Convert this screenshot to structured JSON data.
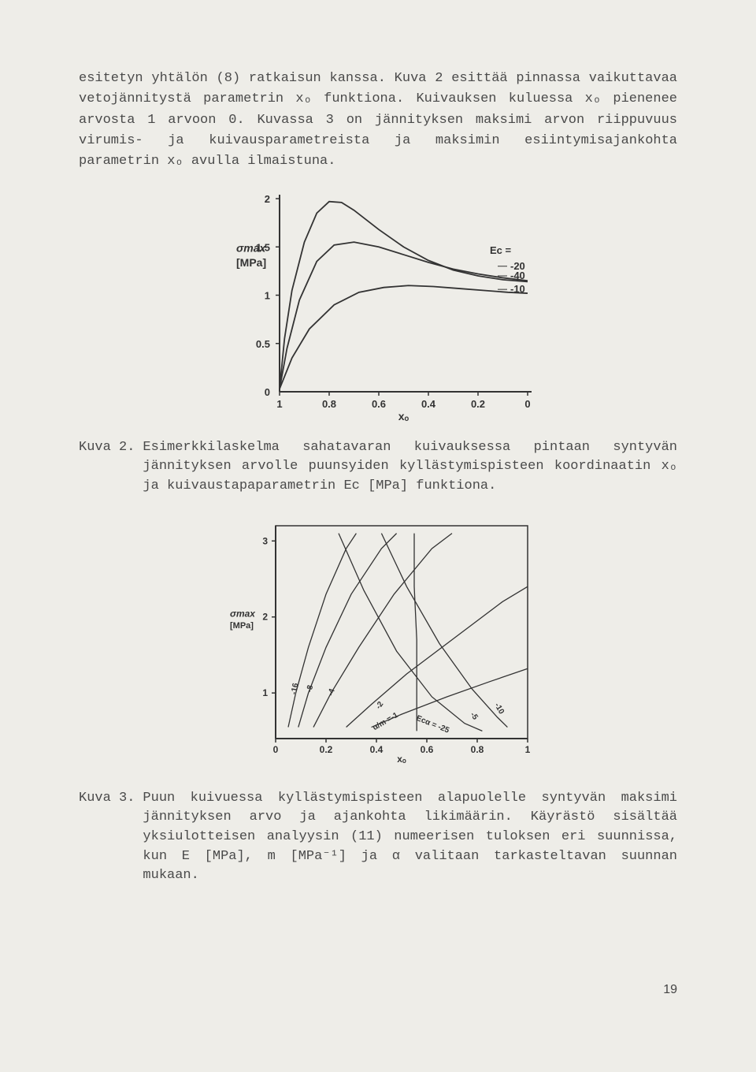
{
  "paragraph1": "esitetyn yhtälön (8) ratkaisun kanssa. Kuva 2 esittää pinnassa vaikuttavaa vetojännitystä parametrin xₒ funktiona. Kuivauksen kuluessa xₒ pienenee arvosta 1 arvoon 0. Kuvassa 3 on jännityksen maksimi arvon riippuvuus virumis- ja kuivausparametreista ja maksimin esiintymisajankohta parametrin xₒ avulla ilmaistuna.",
  "chart1": {
    "type": "line",
    "xlabel": "xₒ",
    "ylabel_top": "σmax",
    "ylabel_bottom": "[MPa]",
    "xlim": [
      1,
      0
    ],
    "ylim": [
      0,
      2
    ],
    "xticks": [
      1,
      0.8,
      0.6,
      0.4,
      0.2,
      0
    ],
    "yticks": [
      0,
      0.5,
      1,
      1.5,
      2
    ],
    "legend_label": "Ec =",
    "legend_values": [
      "-20",
      "-40",
      "-10"
    ],
    "line_color": "#333333",
    "line_width": 1.8,
    "axis_color": "#333333",
    "axis_width": 2,
    "font_size_ticks": 13,
    "font_size_label": 14,
    "series": {
      "minus20": [
        [
          1,
          0.03
        ],
        [
          0.98,
          0.55
        ],
        [
          0.95,
          1.05
        ],
        [
          0.9,
          1.55
        ],
        [
          0.85,
          1.85
        ],
        [
          0.8,
          1.97
        ],
        [
          0.75,
          1.96
        ],
        [
          0.7,
          1.88
        ],
        [
          0.6,
          1.68
        ],
        [
          0.5,
          1.5
        ],
        [
          0.4,
          1.36
        ],
        [
          0.3,
          1.26
        ],
        [
          0.2,
          1.2
        ],
        [
          0.1,
          1.16
        ],
        [
          0,
          1.14
        ]
      ],
      "minus40": [
        [
          1,
          0.03
        ],
        [
          0.97,
          0.45
        ],
        [
          0.92,
          0.95
        ],
        [
          0.85,
          1.35
        ],
        [
          0.78,
          1.52
        ],
        [
          0.7,
          1.55
        ],
        [
          0.6,
          1.5
        ],
        [
          0.5,
          1.42
        ],
        [
          0.4,
          1.34
        ],
        [
          0.3,
          1.27
        ],
        [
          0.2,
          1.22
        ],
        [
          0.1,
          1.18
        ],
        [
          0,
          1.15
        ]
      ],
      "minus10": [
        [
          1,
          0.03
        ],
        [
          0.95,
          0.35
        ],
        [
          0.88,
          0.65
        ],
        [
          0.78,
          0.9
        ],
        [
          0.68,
          1.03
        ],
        [
          0.58,
          1.08
        ],
        [
          0.48,
          1.1
        ],
        [
          0.38,
          1.09
        ],
        [
          0.28,
          1.07
        ],
        [
          0.18,
          1.05
        ],
        [
          0.08,
          1.03
        ],
        [
          0,
          1.02
        ]
      ]
    }
  },
  "caption1_label": "Kuva 2.",
  "caption1_body": "Esimerkkilaskelma sahatavaran kuivauksessa pintaan syntyvän jännityksen arvolle puunsyiden kyllästymispisteen koordinaatin xₒ ja kuivaustapaparametrin Ec [MPa] funktiona.",
  "chart2": {
    "type": "line-network",
    "xlabel": "xₒ",
    "ylabel_top": "σmax",
    "ylabel_bottom": "[MPa]",
    "xlim": [
      0,
      1
    ],
    "ylim": [
      0.4,
      3.2
    ],
    "xticks": [
      0,
      0.2,
      0.4,
      0.6,
      0.8,
      1
    ],
    "yticks": [
      1,
      2,
      3
    ],
    "line_color": "#333333",
    "line_width": 1.3,
    "axis_color": "#333333",
    "axis_width": 2,
    "border_color": "#333333",
    "font_size_ticks": 12,
    "font_size_label": 12,
    "curves": {
      "m16": [
        [
          0.05,
          0.55
        ],
        [
          0.08,
          1.0
        ],
        [
          0.13,
          1.6
        ],
        [
          0.2,
          2.3
        ],
        [
          0.28,
          2.9
        ],
        [
          0.32,
          3.1
        ]
      ],
      "m8": [
        [
          0.09,
          0.55
        ],
        [
          0.13,
          1.0
        ],
        [
          0.2,
          1.6
        ],
        [
          0.3,
          2.3
        ],
        [
          0.42,
          2.9
        ],
        [
          0.48,
          3.1
        ]
      ],
      "m4": [
        [
          0.15,
          0.55
        ],
        [
          0.22,
          1.0
        ],
        [
          0.33,
          1.6
        ],
        [
          0.47,
          2.3
        ],
        [
          0.62,
          2.9
        ],
        [
          0.7,
          3.1
        ]
      ],
      "m2": [
        [
          0.28,
          0.55
        ],
        [
          0.38,
          0.85
        ],
        [
          0.52,
          1.25
        ],
        [
          0.7,
          1.7
        ],
        [
          0.9,
          2.2
        ],
        [
          1.0,
          2.4
        ]
      ],
      "m1": [
        [
          0.38,
          0.55
        ],
        [
          0.5,
          0.72
        ],
        [
          0.68,
          0.95
        ],
        [
          0.85,
          1.15
        ],
        [
          1.0,
          1.32
        ]
      ],
      "e5": [
        [
          0.25,
          3.1
        ],
        [
          0.35,
          2.35
        ],
        [
          0.48,
          1.55
        ],
        [
          0.62,
          0.95
        ],
        [
          0.75,
          0.6
        ],
        [
          0.82,
          0.5
        ]
      ],
      "e10": [
        [
          0.42,
          3.1
        ],
        [
          0.52,
          2.4
        ],
        [
          0.65,
          1.65
        ],
        [
          0.78,
          1.05
        ],
        [
          0.88,
          0.68
        ],
        [
          0.92,
          0.55
        ]
      ],
      "e25": [
        [
          0.55,
          3.1
        ],
        [
          0.55,
          2.4
        ],
        [
          0.56,
          1.7
        ],
        [
          0.56,
          1.1
        ],
        [
          0.56,
          0.7
        ],
        [
          0.56,
          0.5
        ]
      ]
    },
    "curve_labels": [
      {
        "text": "-16",
        "x": 0.085,
        "y": 1.05,
        "rot": -80
      },
      {
        "text": "-8",
        "x": 0.145,
        "y": 1.05,
        "rot": -78
      },
      {
        "text": "-4",
        "x": 0.23,
        "y": 1.0,
        "rot": -72
      },
      {
        "text": "-2",
        "x": 0.42,
        "y": 0.82,
        "rot": -55
      },
      {
        "text": "α/m =-1",
        "x": 0.44,
        "y": 0.6,
        "rot": -30
      },
      {
        "text": "-5",
        "x": 0.78,
        "y": 0.68,
        "rot": 55
      },
      {
        "text": "-10",
        "x": 0.88,
        "y": 0.78,
        "rot": 60
      },
      {
        "text": "Ecα = -25",
        "x": 0.62,
        "y": 0.56,
        "rot": 22
      }
    ]
  },
  "caption2_label": "Kuva 3.",
  "caption2_body": "Puun kuivuessa kyllästymispisteen alapuolelle syntyvän maksimi jännityksen arvo ja ajankohta likimäärin. Käyrästö sisältää yksiulotteisen analyysin (11) numeerisen tuloksen eri suunnissa, kun E [MPa], m [MPa⁻¹] ja α valitaan tarkasteltavan suunnan mukaan.",
  "page_number": "19",
  "colors": {
    "paper": "#eeede8",
    "ink": "#4a4a4a",
    "chart_ink": "#333333"
  }
}
